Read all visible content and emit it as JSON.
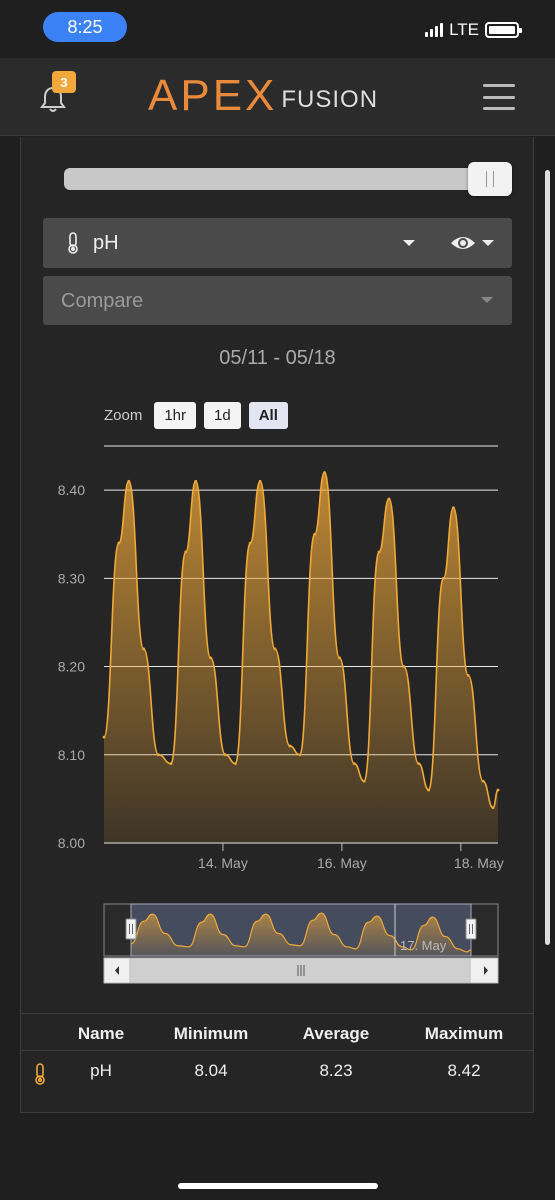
{
  "status": {
    "time": "8:25",
    "network": "LTE"
  },
  "header": {
    "notification_count": "3",
    "logo_primary": "APEX",
    "logo_secondary": "FUSION",
    "accent_color": "#e8893b"
  },
  "controls": {
    "probe_label": "pH",
    "compare_placeholder": "Compare",
    "slider_value_fraction": 1.0
  },
  "chart": {
    "date_range": "05/11 - 05/18",
    "zoom_label": "Zoom",
    "zoom_options": [
      "1hr",
      "1d",
      "All"
    ],
    "zoom_selected": "All"
  },
  "chart_data": {
    "type": "area",
    "title": "",
    "xlabel": "",
    "ylabel": "",
    "ylim": [
      8.0,
      8.45
    ],
    "yticks": [
      "8.00",
      "8.10",
      "8.20",
      "8.30",
      "8.40"
    ],
    "xticks": [
      "14. May",
      "16. May",
      "18. May"
    ],
    "navigator_label": "17. May",
    "series": [
      {
        "name": "pH",
        "color": "#f0a838",
        "points": [
          [
            "2019-05-12T00:00",
            8.12
          ],
          [
            "2019-05-12T06:00",
            8.34
          ],
          [
            "2019-05-12T10:00",
            8.41
          ],
          [
            "2019-05-12T16:00",
            8.22
          ],
          [
            "2019-05-12T22:00",
            8.1
          ],
          [
            "2019-05-13T03:00",
            8.09
          ],
          [
            "2019-05-13T09:00",
            8.33
          ],
          [
            "2019-05-13T13:00",
            8.41
          ],
          [
            "2019-05-13T19:00",
            8.21
          ],
          [
            "2019-05-14T01:00",
            8.1
          ],
          [
            "2019-05-14T05:00",
            8.09
          ],
          [
            "2019-05-14T11:00",
            8.34
          ],
          [
            "2019-05-14T15:00",
            8.41
          ],
          [
            "2019-05-14T21:00",
            8.22
          ],
          [
            "2019-05-15T03:00",
            8.11
          ],
          [
            "2019-05-15T07:00",
            8.1
          ],
          [
            "2019-05-15T13:00",
            8.35
          ],
          [
            "2019-05-15T17:00",
            8.42
          ],
          [
            "2019-05-15T23:00",
            8.21
          ],
          [
            "2019-05-16T05:00",
            8.09
          ],
          [
            "2019-05-16T09:00",
            8.07
          ],
          [
            "2019-05-16T15:00",
            8.33
          ],
          [
            "2019-05-16T19:00",
            8.39
          ],
          [
            "2019-05-17T01:00",
            8.2
          ],
          [
            "2019-05-17T07:00",
            8.09
          ],
          [
            "2019-05-17T11:00",
            8.06
          ],
          [
            "2019-05-17T17:00",
            8.3
          ],
          [
            "2019-05-17T21:00",
            8.38
          ],
          [
            "2019-05-18T03:00",
            8.19
          ],
          [
            "2019-05-18T09:00",
            8.07
          ],
          [
            "2019-05-18T13:00",
            8.04
          ],
          [
            "2019-05-18T15:00",
            8.06
          ]
        ]
      }
    ]
  },
  "stats": {
    "headers": [
      "Name",
      "Minimum",
      "Average",
      "Maximum"
    ],
    "rows": [
      {
        "name": "pH",
        "minimum": "8.04",
        "average": "8.23",
        "maximum": "8.42"
      }
    ]
  }
}
